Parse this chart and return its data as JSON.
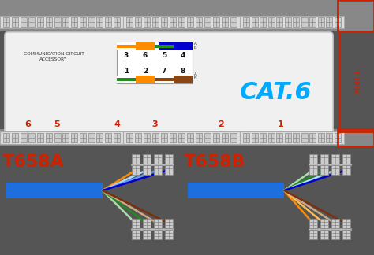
{
  "bg_color": "#555555",
  "white_bg": "#f0f0f0",
  "title": "CAT.6",
  "port_label": "PORT 1",
  "numbers_top": [
    "3",
    "6",
    "5",
    "4"
  ],
  "numbers_bottom": [
    "1",
    "2",
    "7",
    "8"
  ],
  "port_numbers": [
    "6",
    "5",
    "4",
    "3",
    "2",
    "1"
  ],
  "t658a_label": "T658A",
  "t658b_label": "T658B",
  "red_border": "#cc2200",
  "cyan_text": "#00aaff",
  "blue_cable": "#1e6fdd",
  "wire_colors_568a_upper": [
    "#ff8c00",
    "#aaaaff",
    "#aaccff",
    "#0000cc"
  ],
  "wire_colors_568a_lower": [
    "#88cc88",
    "#228b22",
    "#ccaa88",
    "#7b3a10"
  ],
  "wire_colors_568b_upper": [
    "#228b22",
    "#aaccff",
    "#aaaaff",
    "#0000cc"
  ],
  "wire_colors_568b_lower": [
    "#ff8c00",
    "#ffaa55",
    "#ccaa88",
    "#7b3a10"
  ]
}
